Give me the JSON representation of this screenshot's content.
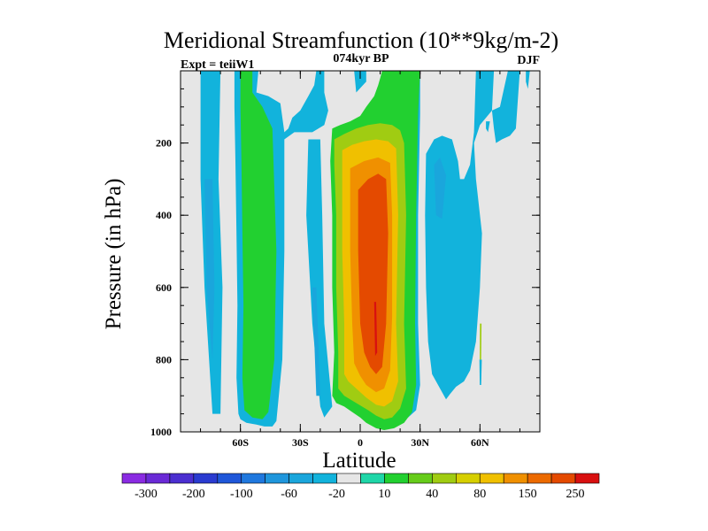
{
  "chart_data": {
    "type": "contour",
    "title": "Meridional Streamfunction (10**9kg/m-2)",
    "left_label": "Expt = teiiW1",
    "center_label": "074kyr BP",
    "right_label": "DJF",
    "xlabel": "Latitude",
    "ylabel": "Pressure (in hPa)",
    "xlim": [
      -90,
      90
    ],
    "ylim": [
      1000,
      0
    ],
    "x_ticks": [
      {
        "value": -60,
        "label": "60S"
      },
      {
        "value": -30,
        "label": "30S"
      },
      {
        "value": 0,
        "label": "0"
      },
      {
        "value": 30,
        "label": "30N"
      },
      {
        "value": 60,
        "label": "60N"
      }
    ],
    "y_ticks": [
      {
        "value": 200,
        "label": "200"
      },
      {
        "value": 400,
        "label": "400"
      },
      {
        "value": 600,
        "label": "600"
      },
      {
        "value": 800,
        "label": "800"
      },
      {
        "value": 1000,
        "label": "1000"
      }
    ],
    "background_color": "#e6e6e6",
    "colorbar": {
      "colors": [
        "#8a2be2",
        "#6a2ad6",
        "#4b2fd0",
        "#2a3bd0",
        "#1f57d9",
        "#1f78de",
        "#1f96dc",
        "#1aa6dc",
        "#12b3dc",
        "#e6e6e6",
        "#1fd6a8",
        "#22d030",
        "#66cc1a",
        "#a0cc12",
        "#d6cf00",
        "#f0c000",
        "#f09000",
        "#ec6a00",
        "#e44a00",
        "#d81010"
      ],
      "labels": [
        "-300",
        "-200",
        "-100",
        "-60",
        "-20",
        "10",
        "40",
        "80",
        "150",
        "250"
      ]
    },
    "regions": [
      {
        "level": -20,
        "outline": [
          [
            -80,
            0
          ],
          [
            -70,
            0
          ],
          [
            -71,
            300
          ],
          [
            -69,
            600
          ],
          [
            -70,
            950
          ],
          [
            -74,
            950
          ],
          [
            -78,
            600
          ],
          [
            -80,
            300
          ]
        ]
      },
      {
        "level": -60,
        "outline": [
          [
            -78,
            300
          ],
          [
            -74,
            300
          ],
          [
            -73,
            600
          ],
          [
            -74,
            800
          ],
          [
            -77,
            600
          ]
        ]
      },
      {
        "level": -20,
        "outline": [
          [
            -63,
            0
          ],
          [
            -51,
            0
          ],
          [
            -52,
            60
          ],
          [
            -46,
            70
          ],
          [
            -40,
            90
          ],
          [
            -38,
            170
          ],
          [
            -36,
            160
          ],
          [
            -34,
            130
          ],
          [
            -30,
            110
          ],
          [
            -26,
            70
          ],
          [
            -23,
            40
          ],
          [
            -22,
            0
          ],
          [
            -18,
            0
          ],
          [
            -18,
            60
          ],
          [
            -16,
            110
          ],
          [
            -18,
            150
          ],
          [
            -24,
            170
          ],
          [
            -33,
            170
          ],
          [
            -38,
            190
          ],
          [
            -38,
            500
          ],
          [
            -39,
            800
          ],
          [
            -42,
            970
          ],
          [
            -44,
            985
          ],
          [
            -48,
            985
          ],
          [
            -52,
            980
          ],
          [
            -57,
            975
          ],
          [
            -60,
            965
          ],
          [
            -61,
            950
          ],
          [
            -62,
            850
          ],
          [
            -61.5,
            650
          ],
          [
            -62,
            450
          ],
          [
            -62.5,
            250
          ],
          [
            -63,
            100
          ]
        ]
      },
      {
        "level": 10,
        "outline": [
          [
            -60,
            0
          ],
          [
            -54,
            0
          ],
          [
            -54,
            60
          ],
          [
            -49,
            100
          ],
          [
            -44,
            160
          ],
          [
            -42,
            500
          ],
          [
            -43,
            800
          ],
          [
            -46,
            945
          ],
          [
            -49,
            965
          ],
          [
            -54,
            960
          ],
          [
            -58,
            940
          ],
          [
            -59,
            850
          ],
          [
            -58.5,
            650
          ],
          [
            -59,
            450
          ],
          [
            -59.5,
            250
          ],
          [
            -60,
            100
          ]
        ]
      },
      {
        "level": -20,
        "outline": [
          [
            -26,
            190
          ],
          [
            -20,
            190
          ],
          [
            -19,
            400
          ],
          [
            -18,
            700
          ],
          [
            -14,
            930
          ],
          [
            -18,
            960
          ],
          [
            -20,
            930
          ],
          [
            -24,
            700
          ],
          [
            -27,
            400
          ]
        ]
      },
      {
        "level": -60,
        "outline": [
          [
            -24,
            600
          ],
          [
            -22,
            600
          ],
          [
            -20,
            900
          ],
          [
            -22,
            900
          ]
        ]
      },
      {
        "level": -20,
        "outline": [
          [
            -3,
            0
          ],
          [
            3,
            0
          ],
          [
            3,
            30
          ],
          [
            -2,
            60
          ]
        ]
      },
      {
        "level": -20,
        "outline": [
          [
            20,
            0
          ],
          [
            30,
            0
          ],
          [
            30,
            120
          ],
          [
            29,
            400
          ],
          [
            29,
            700
          ],
          [
            30,
            870
          ],
          [
            28,
            940
          ],
          [
            24,
            960
          ],
          [
            20,
            940
          ]
        ]
      },
      {
        "level": 10,
        "outline": [
          [
            -14,
            160
          ],
          [
            -10,
            150
          ],
          [
            -5,
            140
          ],
          [
            0,
            125
          ],
          [
            3,
            100
          ],
          [
            7,
            70
          ],
          [
            9,
            40
          ],
          [
            10,
            20
          ],
          [
            11,
            0
          ],
          [
            30,
            0
          ],
          [
            29,
            120
          ],
          [
            28,
            400
          ],
          [
            27.5,
            700
          ],
          [
            28,
            870
          ],
          [
            26,
            945
          ],
          [
            22,
            975
          ],
          [
            17,
            990
          ],
          [
            12,
            995
          ],
          [
            8,
            990
          ],
          [
            3,
            975
          ],
          [
            0,
            960
          ],
          [
            -4,
            945
          ],
          [
            -8,
            930
          ],
          [
            -12,
            920
          ],
          [
            -14,
            900
          ],
          [
            -13,
            780
          ],
          [
            -14,
            600
          ],
          [
            -14,
            400
          ],
          [
            -15,
            250
          ]
        ]
      },
      {
        "level": 40,
        "outline": [
          [
            -13,
            190
          ],
          [
            -8,
            175
          ],
          [
            -2,
            160
          ],
          [
            4,
            150
          ],
          [
            10,
            145
          ],
          [
            16,
            150
          ],
          [
            20,
            165
          ],
          [
            22,
            200
          ],
          [
            23,
            400
          ],
          [
            22,
            700
          ],
          [
            23,
            880
          ],
          [
            20,
            935
          ],
          [
            16,
            960
          ],
          [
            12,
            965
          ],
          [
            8,
            955
          ],
          [
            4,
            940
          ],
          [
            -2,
            920
          ],
          [
            -8,
            900
          ],
          [
            -11,
            880
          ],
          [
            -11,
            780
          ],
          [
            -12,
            600
          ],
          [
            -12,
            400
          ],
          [
            -13,
            260
          ]
        ]
      },
      {
        "level": 80,
        "outline": [
          [
            -9,
            220
          ],
          [
            -4,
            205
          ],
          [
            2,
            195
          ],
          [
            8,
            190
          ],
          [
            14,
            195
          ],
          [
            18,
            215
          ],
          [
            19,
            400
          ],
          [
            18,
            700
          ],
          [
            19,
            860
          ],
          [
            16,
            915
          ],
          [
            12,
            930
          ],
          [
            8,
            925
          ],
          [
            3,
            905
          ],
          [
            -2,
            880
          ],
          [
            -6,
            860
          ],
          [
            -8,
            840
          ],
          [
            -8,
            700
          ],
          [
            -9,
            500
          ],
          [
            -9,
            350
          ]
        ]
      },
      {
        "level": 150,
        "outline": [
          [
            -5,
            270
          ],
          [
            2,
            250
          ],
          [
            9,
            240
          ],
          [
            15,
            255
          ],
          [
            16,
            400
          ],
          [
            16,
            680
          ],
          [
            15,
            830
          ],
          [
            12,
            880
          ],
          [
            8,
            890
          ],
          [
            3,
            870
          ],
          [
            0,
            845
          ],
          [
            -3,
            810
          ],
          [
            -4,
            700
          ],
          [
            -5,
            500
          ]
        ]
      },
      {
        "level": 250,
        "outline": [
          [
            -1,
            330
          ],
          [
            4,
            300
          ],
          [
            9,
            285
          ],
          [
            13,
            300
          ],
          [
            14,
            450
          ],
          [
            13,
            700
          ],
          [
            11,
            820
          ],
          [
            8,
            840
          ],
          [
            5,
            820
          ],
          [
            2,
            780
          ],
          [
            0,
            700
          ],
          [
            -1,
            500
          ]
        ]
      },
      {
        "level": 300,
        "outline": [
          [
            7,
            640
          ],
          [
            8,
            640
          ],
          [
            8.5,
            780
          ],
          [
            7.5,
            790
          ]
        ]
      },
      {
        "level": -20,
        "outline": [
          [
            33,
            230
          ],
          [
            37,
            190
          ],
          [
            41,
            180
          ],
          [
            46,
            190
          ],
          [
            49,
            250
          ],
          [
            50,
            300
          ],
          [
            52,
            300
          ],
          [
            55,
            260
          ],
          [
            57,
            170
          ],
          [
            58,
            0
          ],
          [
            67,
            0
          ],
          [
            66,
            110
          ],
          [
            60,
            150
          ],
          [
            57,
            200
          ],
          [
            58,
            300
          ],
          [
            61,
            450
          ],
          [
            60,
            600
          ],
          [
            58,
            750
          ],
          [
            55,
            830
          ],
          [
            52,
            860
          ],
          [
            48,
            875
          ],
          [
            45,
            895
          ],
          [
            43,
            910
          ],
          [
            40,
            880
          ],
          [
            36,
            840
          ],
          [
            34,
            750
          ],
          [
            33,
            600
          ],
          [
            32.5,
            400
          ]
        ]
      },
      {
        "level": -60,
        "outline": [
          [
            37,
            260
          ],
          [
            40,
            240
          ],
          [
            43,
            290
          ],
          [
            41,
            410
          ],
          [
            38,
            400
          ]
        ]
      },
      {
        "level": -20,
        "outline": [
          [
            66,
            110
          ],
          [
            70,
            100
          ],
          [
            74,
            0
          ],
          [
            80,
            0
          ],
          [
            78,
            160
          ],
          [
            75,
            180
          ],
          [
            71,
            190
          ],
          [
            68,
            200
          ],
          [
            67,
            160
          ]
        ]
      },
      {
        "level": -20,
        "outline": [
          [
            83,
            0
          ],
          [
            85,
            0
          ],
          [
            84,
            50
          ],
          [
            83,
            30
          ]
        ]
      },
      {
        "level": -20,
        "outline": [
          [
            63,
            140
          ],
          [
            65,
            140
          ],
          [
            64,
            170
          ],
          [
            63,
            160
          ]
        ]
      },
      {
        "level": 40,
        "outline": [
          [
            60,
            700
          ],
          [
            60.8,
            700
          ],
          [
            60.6,
            800
          ],
          [
            59.9,
            800
          ]
        ]
      },
      {
        "level": -20,
        "outline": [
          [
            59.7,
            800
          ],
          [
            60.9,
            800
          ],
          [
            60.6,
            870
          ],
          [
            59.9,
            870
          ]
        ]
      }
    ]
  }
}
